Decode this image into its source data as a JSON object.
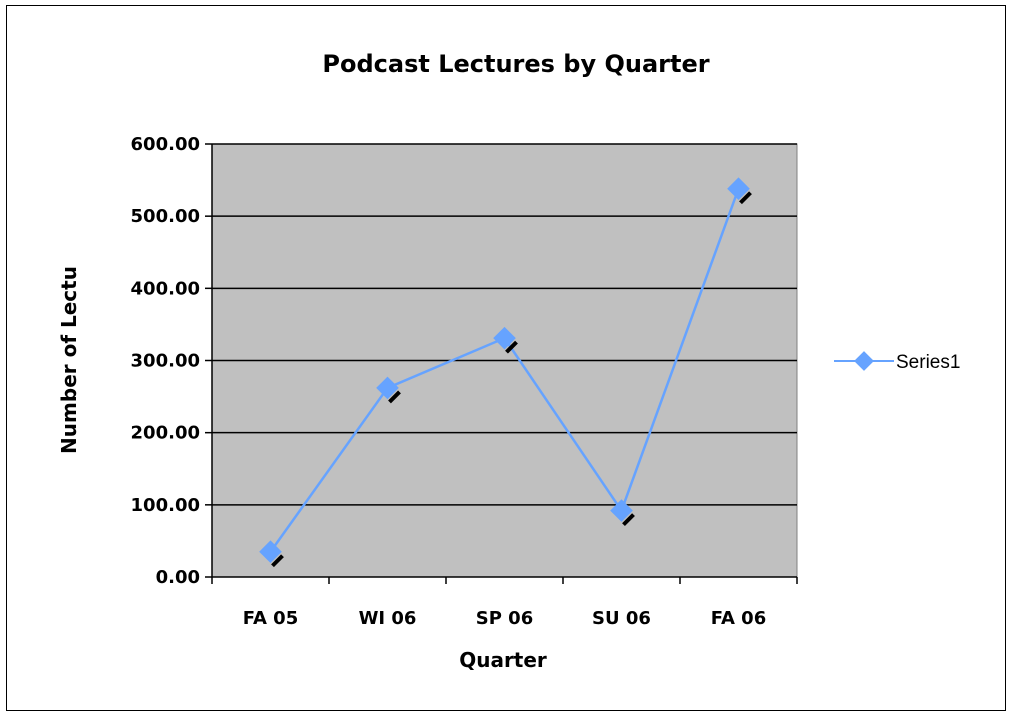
{
  "chart_data": {
    "type": "line",
    "title": "Podcast Lectures by Quarter",
    "xlabel": "Quarter",
    "ylabel": "Number of Lectu",
    "categories": [
      "FA 05",
      "WI 06",
      "SP 06",
      "SU 06",
      "FA 06"
    ],
    "ylim": [
      0,
      600
    ],
    "yticks": [
      "0.00",
      "100.00",
      "200.00",
      "300.00",
      "400.00",
      "500.00",
      "600.00"
    ],
    "grid": true,
    "legend_position": "right",
    "series": [
      {
        "name": "Series1",
        "values": [
          35,
          262,
          331,
          92,
          538
        ]
      }
    ],
    "colors": {
      "series": "#66a3ff",
      "marker": "#66a3ff",
      "plot_bg": "#c0c0c0"
    }
  }
}
